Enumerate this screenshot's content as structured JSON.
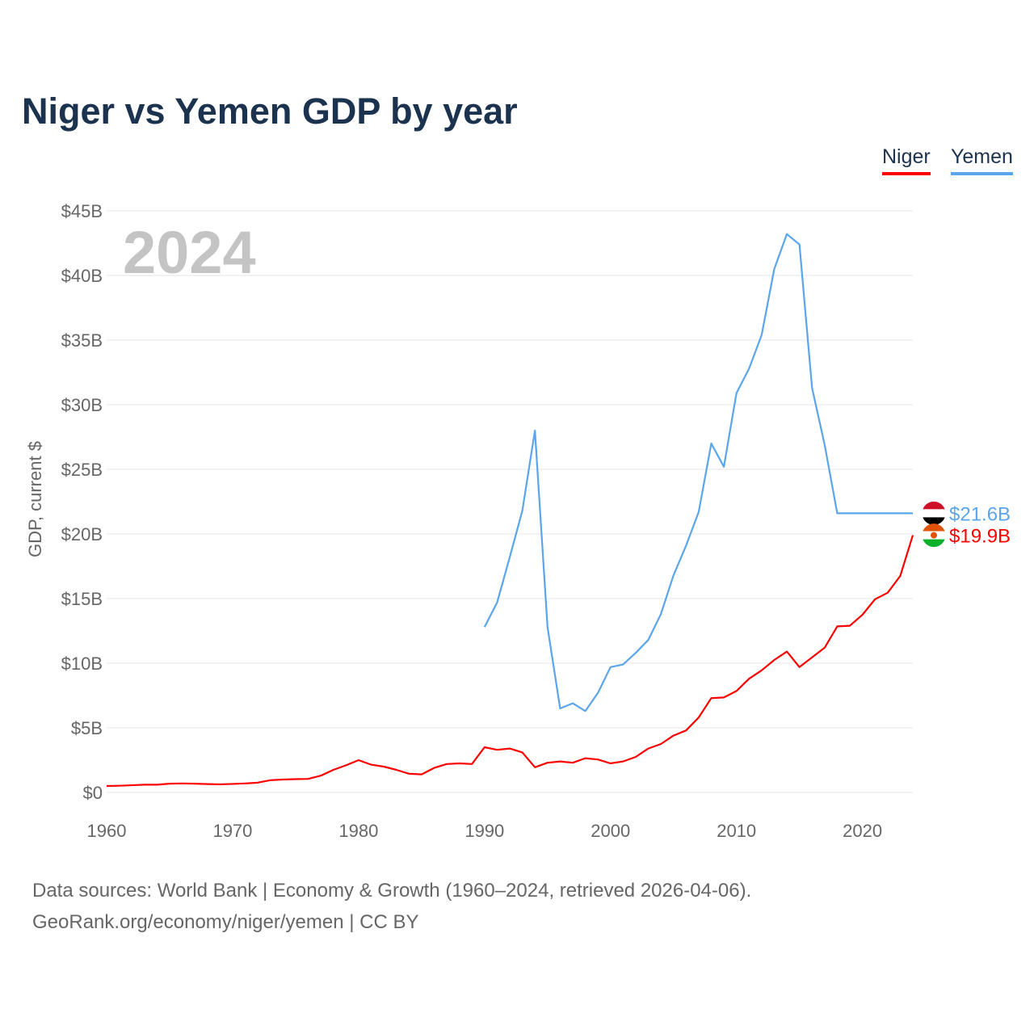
{
  "chart_data": {
    "type": "line",
    "title": "Niger vs Yemen GDP by year",
    "ylabel": "GDP, current $",
    "xlabel": "",
    "current_year_label": "2024",
    "xlim": [
      1960,
      2024
    ],
    "ylim": [
      0,
      45
    ],
    "x_ticks": [
      "1960",
      "1970",
      "1980",
      "1990",
      "2000",
      "2010",
      "2020"
    ],
    "y_ticks": [
      "$0",
      "$5B",
      "$10B",
      "$15B",
      "$20B",
      "$25B",
      "$30B",
      "$35B",
      "$40B",
      "$45B"
    ],
    "legend": [
      "Niger",
      "Yemen"
    ],
    "legend_position": "top-right",
    "series": [
      {
        "name": "Niger",
        "color": "#ff0000",
        "start_year": 1960,
        "end_label": "$19.9B",
        "values": [
          0.5,
          0.52,
          0.56,
          0.6,
          0.6,
          0.68,
          0.7,
          0.68,
          0.65,
          0.63,
          0.66,
          0.7,
          0.76,
          0.95,
          1.0,
          1.03,
          1.05,
          1.3,
          1.75,
          2.1,
          2.5,
          2.15,
          2.0,
          1.75,
          1.45,
          1.4,
          1.9,
          2.2,
          2.25,
          2.2,
          3.5,
          3.3,
          3.4,
          3.1,
          1.95,
          2.3,
          2.4,
          2.3,
          2.65,
          2.55,
          2.25,
          2.4,
          2.75,
          3.4,
          3.75,
          4.4,
          4.8,
          5.8,
          7.3,
          7.35,
          7.85,
          8.8,
          9.45,
          10.25,
          10.9,
          9.7,
          10.45,
          11.2,
          12.85,
          12.9,
          13.75,
          14.95,
          15.45,
          16.75,
          19.9
        ]
      },
      {
        "name": "Yemen",
        "color": "#5aa5ec",
        "start_year": 1990,
        "end_label": "$21.6B",
        "values": [
          12.8,
          14.7,
          18.2,
          21.8,
          28.0,
          12.8,
          6.5,
          6.9,
          6.3,
          7.7,
          9.7,
          9.9,
          10.8,
          11.8,
          13.8,
          16.8,
          19.1,
          21.7,
          27.0,
          25.2,
          30.9,
          32.8,
          35.4,
          40.5,
          43.2,
          42.4,
          31.3,
          26.9,
          21.6,
          21.6,
          21.6,
          21.6,
          21.6,
          21.6,
          21.6
        ]
      }
    ]
  },
  "source": {
    "line1": "Data sources: World Bank | Economy & Growth (1960–2024, retrieved 2026-04-06).",
    "line2": "GeoRank.org/economy/niger/yemen | CC BY"
  }
}
